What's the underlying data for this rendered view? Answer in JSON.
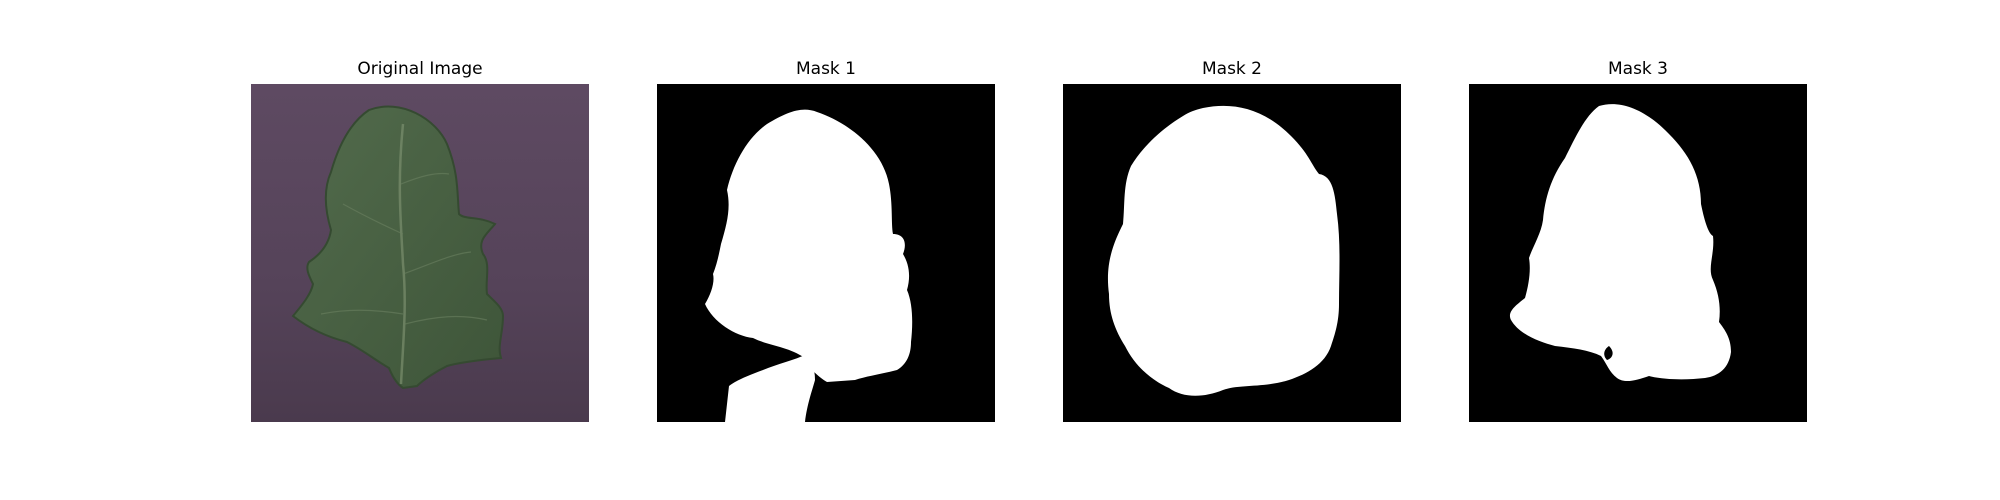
{
  "figure": {
    "panels": [
      {
        "title": "Original Image",
        "content": "leaf-photo"
      },
      {
        "title": "Mask 1",
        "content": "binary-mask"
      },
      {
        "title": "Mask 2",
        "content": "binary-mask"
      },
      {
        "title": "Mask 3",
        "content": "binary-mask"
      }
    ]
  },
  "colors": {
    "background": "#5b4a5c",
    "leaf": "#4a5f45",
    "mask_foreground": "#ffffff",
    "mask_background": "#000000"
  }
}
